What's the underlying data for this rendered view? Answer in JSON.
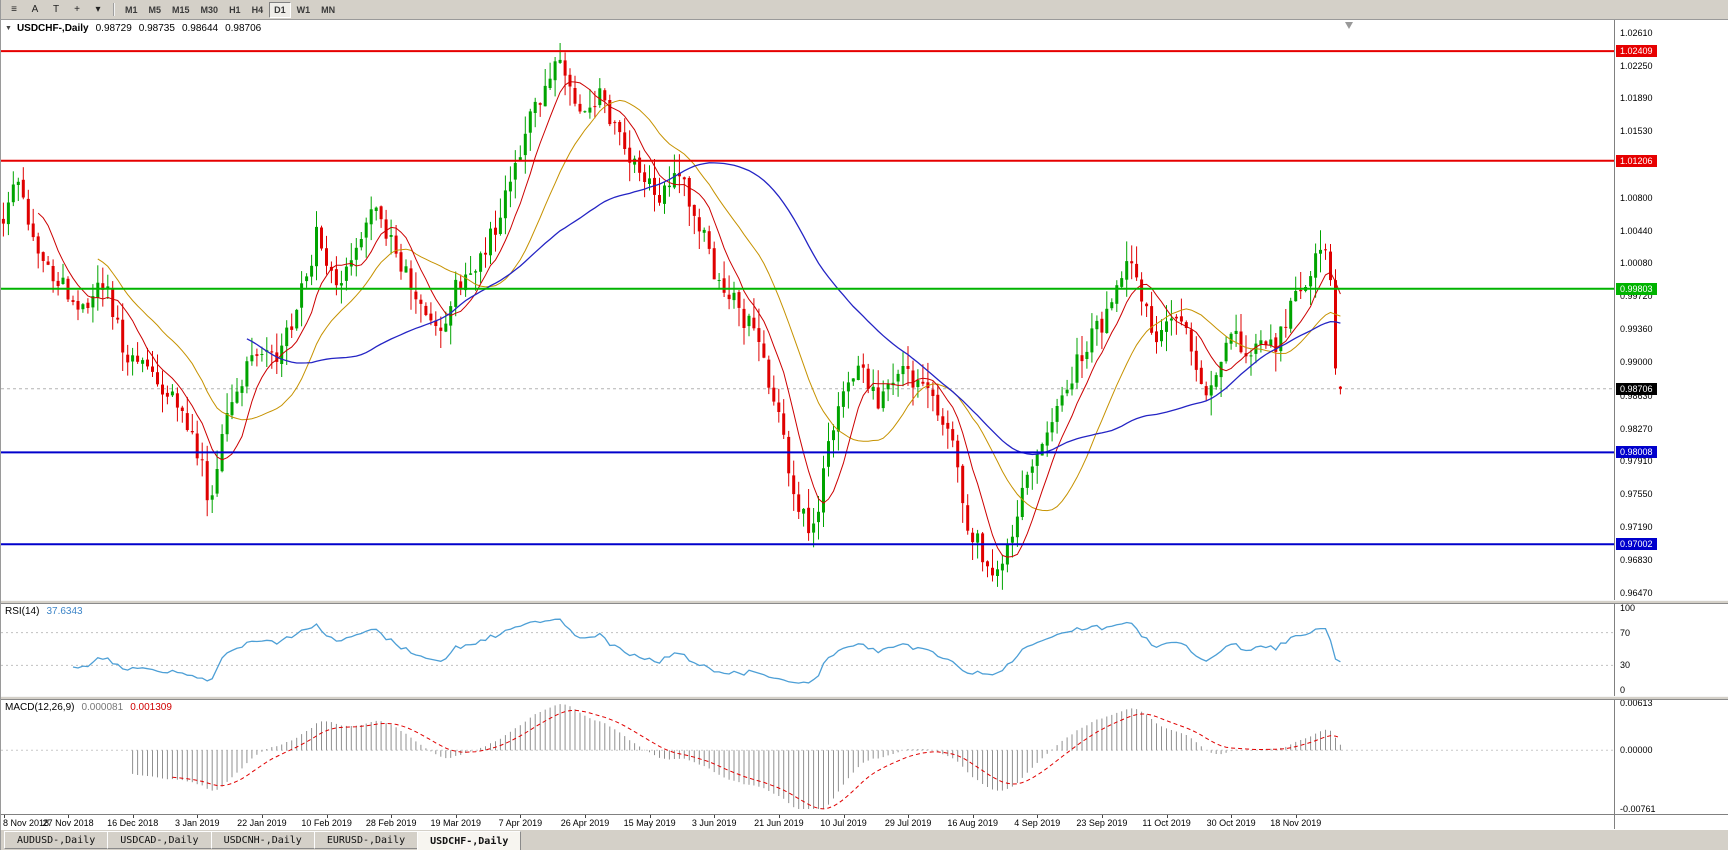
{
  "toolbar": {
    "icons": [
      {
        "name": "chart-bars-icon",
        "glyph": "≡"
      },
      {
        "name": "cursor-icon",
        "glyph": "A"
      },
      {
        "name": "text-tool-icon",
        "glyph": "T"
      },
      {
        "name": "crosshair-icon",
        "glyph": "+"
      },
      {
        "name": "draw-tools-icon",
        "glyph": "▾"
      }
    ],
    "timeframes": [
      "M1",
      "M5",
      "M15",
      "M30",
      "H1",
      "H4",
      "D1",
      "W1",
      "MN"
    ],
    "active_timeframe": "D1"
  },
  "chart": {
    "collapse_glyph": "▼",
    "symbol_header": "USDCHF-,Daily",
    "ohlc": {
      "open": "0.98729",
      "high": "0.98735",
      "low": "0.98644",
      "close": "0.98706"
    },
    "price_axis_labels": [
      "1.02610",
      "1.02250",
      "1.01890",
      "1.01530",
      "1.01170",
      "1.00800",
      "1.00440",
      "1.00080",
      "0.99720",
      "0.99360",
      "0.99000",
      "0.98630",
      "0.98270",
      "0.97910",
      "0.97550",
      "0.97190",
      "0.96830",
      "0.96470"
    ],
    "levels": [
      {
        "label": "1.02409",
        "price": 1.02409,
        "color": "#e60000"
      },
      {
        "label": "1.01206",
        "price": 1.01206,
        "color": "#e60000"
      },
      {
        "label": "0.99803",
        "price": 0.99803,
        "color": "#00b300"
      },
      {
        "label": "0.98008",
        "price": 0.98008,
        "color": "#0000cc"
      },
      {
        "label": "0.97002",
        "price": 0.97002,
        "color": "#0000cc"
      }
    ],
    "current_price": {
      "label": "0.98706",
      "price": 0.98706,
      "color": "#000000"
    },
    "date_labels": [
      "8 Nov 2018",
      "27 Nov 2018",
      "16 Dec 2018",
      "3 Jan 2019",
      "22 Jan 2019",
      "10 Feb 2019",
      "28 Feb 2019",
      "19 Mar 2019",
      "7 Apr 2019",
      "26 Apr 2019",
      "15 May 2019",
      "3 Jun 2019",
      "21 Jun 2019",
      "10 Jul 2019",
      "29 Jul 2019",
      "16 Aug 2019",
      "4 Sep 2019",
      "23 Sep 2019",
      "11 Oct 2019",
      "30 Oct 2019",
      "18 Nov 2019"
    ],
    "colors": {
      "up": "#00a400",
      "down": "#df0000",
      "ma_fast": "#cc0000",
      "ma_mid": "#c69200",
      "ma_slow": "#2424c4",
      "bid_line": "#b4b4b4"
    },
    "price_range": {
      "max": 1.0275,
      "min": 0.9639
    },
    "candles": {
      "count": 270,
      "seed": 1337,
      "waypoints": [
        [
          0.0,
          1.006
        ],
        [
          0.01,
          1.0105
        ],
        [
          0.022,
          1.004
        ],
        [
          0.04,
          0.999
        ],
        [
          0.06,
          0.996
        ],
        [
          0.075,
          0.9985
        ],
        [
          0.09,
          0.9915
        ],
        [
          0.105,
          0.9895
        ],
        [
          0.12,
          0.987
        ],
        [
          0.135,
          0.984
        ],
        [
          0.148,
          0.979
        ],
        [
          0.155,
          0.9735
        ],
        [
          0.162,
          0.982
        ],
        [
          0.175,
          0.987
        ],
        [
          0.19,
          0.991
        ],
        [
          0.205,
          0.99
        ],
        [
          0.22,
          0.996
        ],
        [
          0.235,
          1.004
        ],
        [
          0.25,
          0.999
        ],
        [
          0.265,
          1.0035
        ],
        [
          0.28,
          1.0075
        ],
        [
          0.29,
          1.003
        ],
        [
          0.3,
          1.0
        ],
        [
          0.315,
          0.995
        ],
        [
          0.325,
          0.993
        ],
        [
          0.34,
          0.9985
        ],
        [
          0.355,
          1.0
        ],
        [
          0.37,
          1.006
        ],
        [
          0.385,
          1.013
        ],
        [
          0.4,
          1.019
        ],
        [
          0.415,
          1.0235
        ],
        [
          0.43,
          1.016
        ],
        [
          0.445,
          1.019
        ],
        [
          0.46,
          1.015
        ],
        [
          0.475,
          1.011
        ],
        [
          0.49,
          1.0075
        ],
        [
          0.505,
          1.0105
        ],
        [
          0.52,
          1.005
        ],
        [
          0.535,
          0.999
        ],
        [
          0.55,
          0.996
        ],
        [
          0.565,
          0.992
        ],
        [
          0.58,
          0.984
        ],
        [
          0.595,
          0.974
        ],
        [
          0.605,
          0.9705
        ],
        [
          0.615,
          0.979
        ],
        [
          0.625,
          0.985
        ],
        [
          0.64,
          0.9895
        ],
        [
          0.655,
          0.986
        ],
        [
          0.67,
          0.9895
        ],
        [
          0.685,
          0.987
        ],
        [
          0.7,
          0.9845
        ],
        [
          0.712,
          0.98
        ],
        [
          0.722,
          0.972
        ],
        [
          0.732,
          0.969
        ],
        [
          0.742,
          0.9655
        ],
        [
          0.752,
          0.97
        ],
        [
          0.762,
          0.975
        ],
        [
          0.775,
          0.98
        ],
        [
          0.79,
          0.9855
        ],
        [
          0.805,
          0.9905
        ],
        [
          0.82,
          0.994
        ],
        [
          0.835,
          0.9985
        ],
        [
          0.845,
          1.0015
        ],
        [
          0.855,
          0.995
        ],
        [
          0.865,
          0.992
        ],
        [
          0.875,
          0.996
        ],
        [
          0.885,
          0.994
        ],
        [
          0.893,
          0.99
        ],
        [
          0.9,
          0.987
        ],
        [
          0.91,
          0.991
        ],
        [
          0.92,
          0.994
        ],
        [
          0.93,
          0.9905
        ],
        [
          0.94,
          0.993
        ],
        [
          0.95,
          0.991
        ],
        [
          0.96,
          0.9945
        ],
        [
          0.97,
          0.9985
        ],
        [
          0.98,
          1.001
        ],
        [
          0.99,
          1.0025
        ],
        [
          1.0,
          0.9875
        ]
      ]
    }
  },
  "rsi": {
    "title": "RSI(14)",
    "value": "37.6343",
    "period": 14,
    "levels": [
      "100",
      "70",
      "30",
      "0"
    ],
    "line_color": "#4d9fd6"
  },
  "macd": {
    "title": "MACD(12,26,9)",
    "value_main": "0.000081",
    "value_signal": "0.001309",
    "axis_labels": [
      "0.00613",
      "0.00000",
      "-0.00761"
    ],
    "range": {
      "max": 0.00613,
      "min": -0.00761
    },
    "hist_color": "#909090",
    "signal_color": "#e00000"
  },
  "tabs": [
    "AUDUSD-,Daily",
    "USDCAD-,Daily",
    "USDCNH-,Daily",
    "EURUSD-,Daily",
    "USDCHF-,Daily"
  ],
  "active_tab": "USDCHF-,Daily"
}
